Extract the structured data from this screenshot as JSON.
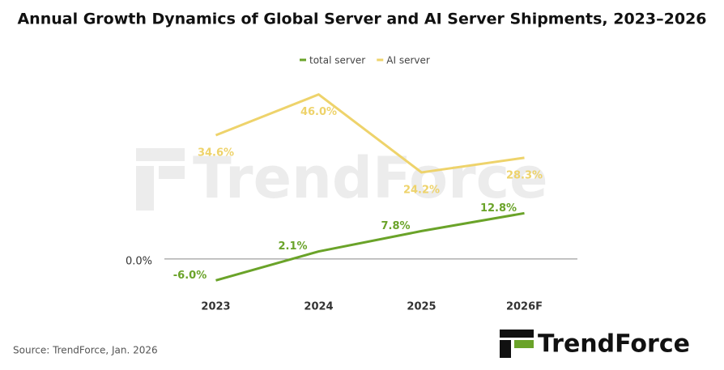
{
  "chart_data": {
    "type": "line",
    "title": "Annual Growth Dynamics of Global Server and AI Server Shipments, 2023–2026",
    "categories": [
      "2023",
      "2024",
      "2025",
      "2026F"
    ],
    "series": [
      {
        "name": "total server",
        "color": "#6aa329",
        "values": [
          -6.0,
          2.1,
          7.8,
          12.8
        ],
        "value_labels": [
          "-6.0%",
          "2.1%",
          "7.8%",
          "12.8%"
        ]
      },
      {
        "name": "AI server",
        "color": "#eed36b",
        "values": [
          34.6,
          46.0,
          24.2,
          28.3
        ],
        "value_labels": [
          "34.6%",
          "46.0%",
          "24.2%",
          "28.3%"
        ]
      }
    ],
    "ylim": [
      -10,
      50
    ],
    "yticks": [
      {
        "value": 0,
        "label": "0.0%"
      }
    ],
    "legend": "top",
    "source": "Source: TrendForce, Jan. 2026",
    "logo": "TrendForce"
  }
}
